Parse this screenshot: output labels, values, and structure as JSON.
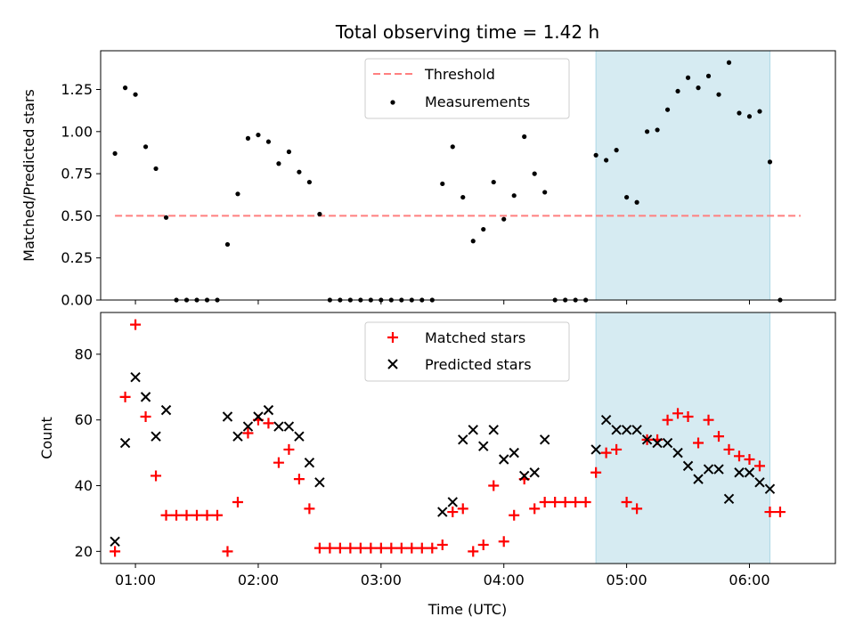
{
  "chart_data": [
    {
      "type": "scatter",
      "title": "Total observing time = 1.42 h",
      "xlabel": "",
      "ylabel": "Matched/Predicted stars",
      "xlim": [
        "00:43",
        "06:42"
      ],
      "ylim": [
        0,
        1.48
      ],
      "yticks": [
        0.0,
        0.25,
        0.5,
        0.75,
        1.0,
        1.25
      ],
      "ytick_labels": [
        "0.00",
        "0.25",
        "0.50",
        "0.75",
        "1.00",
        "1.25"
      ],
      "grid": false,
      "legend_position": "top-center",
      "highlight_span": {
        "x": [
          "04:45",
          "06:10"
        ],
        "color": "#add8e6"
      },
      "threshold": {
        "name": "Threshold",
        "y": 0.5,
        "x": [
          "00:50",
          "06:25"
        ],
        "color": "#ff7f7f",
        "style": "dashed"
      },
      "series": [
        {
          "name": "Measurements",
          "color": "#000000",
          "marker": "dot",
          "x": [
            "00:50",
            "00:55",
            "01:00",
            "01:05",
            "01:10",
            "01:15",
            "01:20",
            "01:25",
            "01:30",
            "01:35",
            "01:40",
            "01:45",
            "01:50",
            "01:55",
            "02:00",
            "02:05",
            "02:10",
            "02:15",
            "02:20",
            "02:25",
            "02:30",
            "02:35",
            "02:40",
            "02:45",
            "02:50",
            "02:55",
            "03:00",
            "03:05",
            "03:10",
            "03:15",
            "03:20",
            "03:25",
            "03:30",
            "03:35",
            "03:40",
            "03:45",
            "03:50",
            "03:55",
            "04:00",
            "04:05",
            "04:10",
            "04:15",
            "04:20",
            "04:25",
            "04:30",
            "04:35",
            "04:40",
            "04:45",
            "04:50",
            "04:55",
            "05:00",
            "05:05",
            "05:10",
            "05:15",
            "05:20",
            "05:25",
            "05:30",
            "05:35",
            "05:40",
            "05:45",
            "05:50",
            "05:55",
            "06:00",
            "06:05",
            "06:10",
            "06:15"
          ],
          "y": [
            0.87,
            1.26,
            1.22,
            0.91,
            0.78,
            0.49,
            0.0,
            0.0,
            0.0,
            0.0,
            0.0,
            0.33,
            0.63,
            0.96,
            0.98,
            0.94,
            0.81,
            0.88,
            0.76,
            0.7,
            0.51,
            0.0,
            0.0,
            0.0,
            0.0,
            0.0,
            0.0,
            0.0,
            0.0,
            0.0,
            0.0,
            0.0,
            0.69,
            0.91,
            0.61,
            0.35,
            0.42,
            0.7,
            0.48,
            0.62,
            0.97,
            0.75,
            0.64,
            0.0,
            0.0,
            0.0,
            0.0,
            0.86,
            0.83,
            0.89,
            0.61,
            0.58,
            1.0,
            1.01,
            1.13,
            1.24,
            1.32,
            1.26,
            1.33,
            1.22,
            1.41,
            1.11,
            1.09,
            1.12,
            0.82,
            0.0
          ]
        }
      ]
    },
    {
      "type": "scatter",
      "title": "",
      "xlabel": "Time (UTC)",
      "ylabel": "Count",
      "xlim": [
        "00:43",
        "06:42"
      ],
      "ylim": [
        16.3,
        92.7
      ],
      "yticks": [
        20,
        40,
        60,
        80
      ],
      "ytick_labels": [
        "20",
        "40",
        "60",
        "80"
      ],
      "xticks": [
        "01:00",
        "02:00",
        "03:00",
        "04:00",
        "05:00",
        "06:00"
      ],
      "xtick_labels": [
        "01:00",
        "02:00",
        "03:00",
        "04:00",
        "05:00",
        "06:00"
      ],
      "grid": false,
      "legend_position": "top-center",
      "highlight_span": {
        "x": [
          "04:45",
          "06:10"
        ],
        "color": "#add8e6"
      },
      "series": [
        {
          "name": "Matched stars",
          "color": "#ff0000",
          "marker": "plus",
          "x": [
            "00:50",
            "00:55",
            "01:00",
            "01:05",
            "01:10",
            "01:15",
            "01:20",
            "01:25",
            "01:30",
            "01:35",
            "01:40",
            "01:45",
            "01:50",
            "01:55",
            "02:00",
            "02:05",
            "02:10",
            "02:15",
            "02:20",
            "02:25",
            "02:30",
            "02:35",
            "02:40",
            "02:45",
            "02:50",
            "02:55",
            "03:00",
            "03:05",
            "03:10",
            "03:15",
            "03:20",
            "03:25",
            "03:30",
            "03:35",
            "03:40",
            "03:45",
            "03:50",
            "03:55",
            "04:00",
            "04:05",
            "04:10",
            "04:15",
            "04:20",
            "04:25",
            "04:30",
            "04:35",
            "04:40",
            "04:45",
            "04:50",
            "04:55",
            "05:00",
            "05:05",
            "05:10",
            "05:15",
            "05:20",
            "05:25",
            "05:30",
            "05:35",
            "05:40",
            "05:45",
            "05:50",
            "05:55",
            "06:00",
            "06:05",
            "06:10",
            "06:15"
          ],
          "y": [
            20,
            67,
            89,
            61,
            43,
            31,
            31,
            31,
            31,
            31,
            31,
            20,
            35,
            56,
            60,
            59,
            47,
            51,
            42,
            33,
            21,
            21,
            21,
            21,
            21,
            21,
            21,
            21,
            21,
            21,
            21,
            21,
            22,
            32,
            33,
            20,
            22,
            40,
            23,
            31,
            42,
            33,
            35,
            35,
            35,
            35,
            35,
            44,
            50,
            51,
            35,
            33,
            54,
            54,
            60,
            62,
            61,
            53,
            60,
            55,
            51,
            49,
            48,
            46,
            32,
            32
          ]
        },
        {
          "name": "Predicted stars",
          "color": "#000000",
          "marker": "x",
          "x": [
            "00:50",
            "00:55",
            "01:00",
            "01:05",
            "01:10",
            "01:15",
            "01:45",
            "01:50",
            "01:55",
            "02:00",
            "02:05",
            "02:10",
            "02:15",
            "02:20",
            "02:25",
            "02:30",
            "03:30",
            "03:35",
            "03:40",
            "03:45",
            "03:50",
            "03:55",
            "04:00",
            "04:05",
            "04:10",
            "04:15",
            "04:20",
            "04:45",
            "04:50",
            "04:55",
            "05:00",
            "05:05",
            "05:10",
            "05:15",
            "05:20",
            "05:25",
            "05:30",
            "05:35",
            "05:40",
            "05:45",
            "05:50",
            "05:55",
            "06:00",
            "06:05",
            "06:10"
          ],
          "y": [
            23,
            53,
            73,
            67,
            55,
            63,
            61,
            55,
            58,
            61,
            63,
            58,
            58,
            55,
            47,
            41,
            32,
            35,
            54,
            57,
            52,
            57,
            48,
            50,
            43,
            44,
            54,
            51,
            60,
            57,
            57,
            57,
            54,
            53,
            53,
            50,
            46,
            42,
            45,
            45,
            36,
            44,
            44,
            41,
            39
          ]
        }
      ]
    }
  ]
}
